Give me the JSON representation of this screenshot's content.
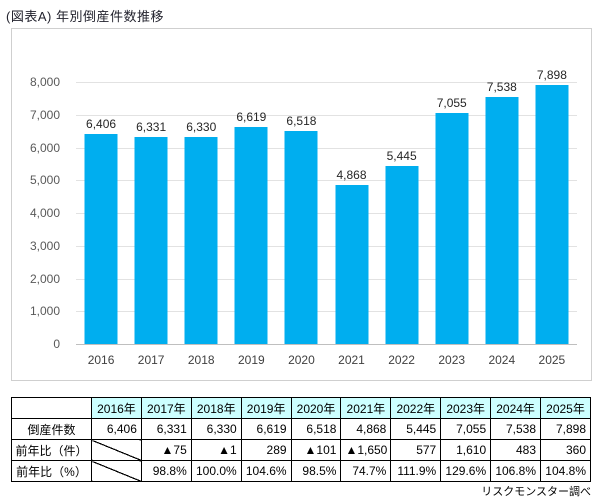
{
  "title": "(図表A) 年別倒産件数推移",
  "source_note": "リスクモンスター調べ",
  "colors": {
    "bar": "#00AEEF",
    "table_header_bg": "#CCFFFF",
    "gridline": "#E2E2E2",
    "axis_text": "#595959",
    "chart_border": "#CFCFCF"
  },
  "chart_data": {
    "type": "bar",
    "title": "(図表A) 年別倒産件数推移",
    "categories": [
      "2016",
      "2017",
      "2018",
      "2019",
      "2020",
      "2021",
      "2022",
      "2023",
      "2024",
      "2025"
    ],
    "values": [
      6406,
      6331,
      6330,
      6619,
      6518,
      4868,
      5445,
      7055,
      7538,
      7898
    ],
    "data_labels": [
      "6,406",
      "6,331",
      "6,330",
      "6,619",
      "6,518",
      "4,868",
      "5,445",
      "7,055",
      "7,538",
      "7,898"
    ],
    "xlabel": "",
    "ylabel": "",
    "ylim": [
      0,
      8000
    ],
    "yticks": [
      {
        "value": 0,
        "label": "0"
      },
      {
        "value": 1000,
        "label": "1,000"
      },
      {
        "value": 2000,
        "label": "2,000"
      },
      {
        "value": 3000,
        "label": "3,000"
      },
      {
        "value": 4000,
        "label": "4,000"
      },
      {
        "value": 5000,
        "label": "5,000"
      },
      {
        "value": 6000,
        "label": "6,000"
      },
      {
        "value": 7000,
        "label": "7,000"
      },
      {
        "value": 8000,
        "label": "8,000"
      }
    ],
    "grid": true,
    "legend_position": "none"
  },
  "table": {
    "header_bg": "#CCFFFF",
    "col_headers": [
      "",
      "2016年",
      "2017年",
      "2018年",
      "2019年",
      "2020年",
      "2021年",
      "2022年",
      "2023年",
      "2024年",
      "2025年"
    ],
    "rows": [
      {
        "label": "倒産件数",
        "diagonal_first": false,
        "values": [
          "6,406",
          "6,331",
          "6,330",
          "6,619",
          "6,518",
          "4,868",
          "5,445",
          "7,055",
          "7,538",
          "7,898"
        ]
      },
      {
        "label": "前年比（件）",
        "diagonal_first": true,
        "values": [
          "",
          "▲75",
          "▲1",
          "289",
          "▲101",
          "▲1,650",
          "577",
          "1,610",
          "483",
          "360"
        ]
      },
      {
        "label": "前年比（%）",
        "diagonal_first": true,
        "values": [
          "",
          "98.8%",
          "100.0%",
          "104.6%",
          "98.5%",
          "74.7%",
          "111.9%",
          "129.6%",
          "106.8%",
          "104.8%"
        ]
      }
    ]
  }
}
